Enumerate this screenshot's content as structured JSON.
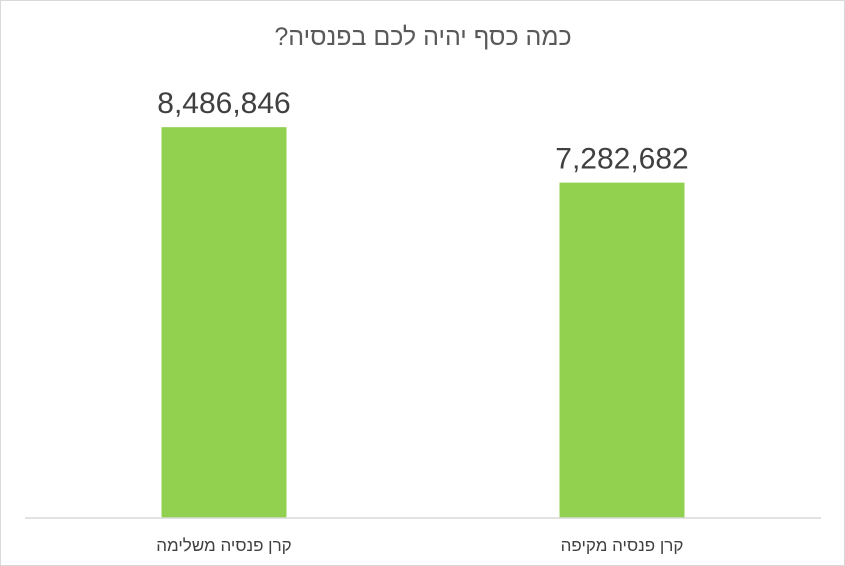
{
  "chart_data": {
    "type": "bar",
    "title": "כמה כסף יהיה לכם בפנסיה?",
    "categories": [
      "קרן פנסיה משלימה",
      "קרן פנסיה מקיפה"
    ],
    "values": [
      8486846,
      7282682
    ],
    "value_labels": [
      "8,486,846",
      "7,282,682"
    ],
    "xlabel": "",
    "ylabel": "",
    "ylim": [
      0,
      10000000
    ],
    "grid": false,
    "legend": "none",
    "bar_color": "#92d050",
    "axis_color": "#d9d9d9"
  }
}
